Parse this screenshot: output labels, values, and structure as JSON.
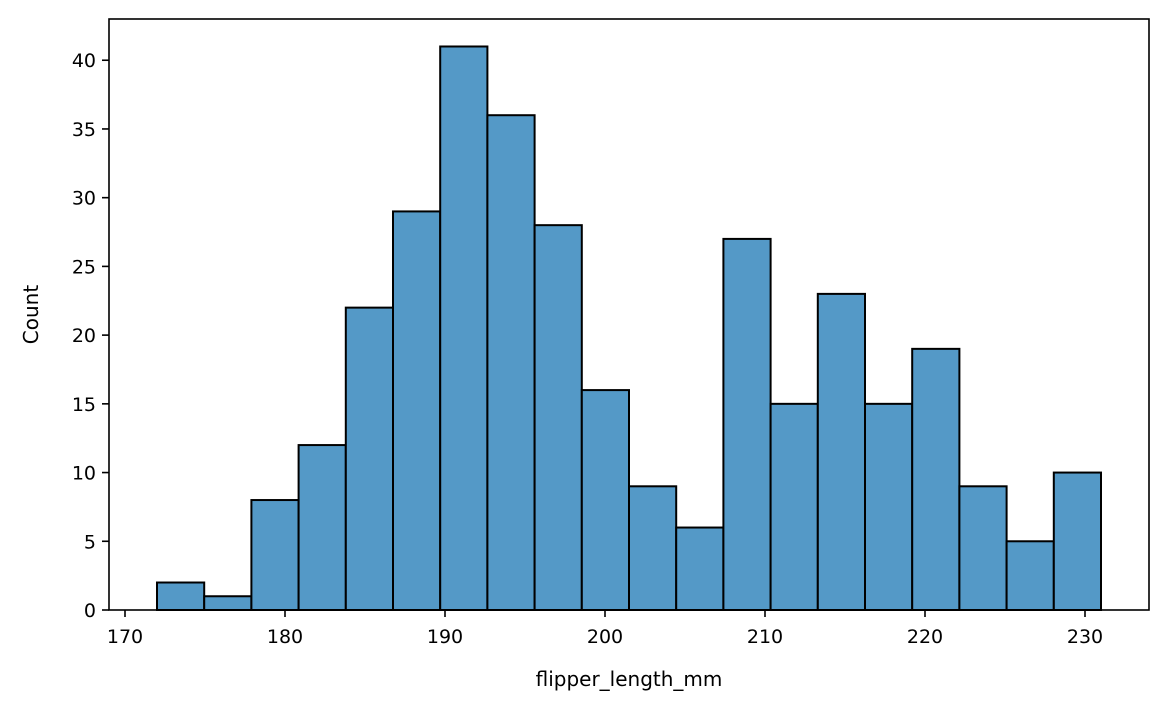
{
  "chart_data": {
    "type": "bar",
    "title": "",
    "xlabel": "flipper_length_mm",
    "ylabel": "Count",
    "bar_color": "#5499c7",
    "edge_color": "#000000",
    "bin_start": 172,
    "bin_width": 2.95,
    "counts": [
      2,
      1,
      8,
      12,
      22,
      29,
      41,
      36,
      28,
      16,
      9,
      6,
      27,
      15,
      23,
      15,
      19,
      9,
      5,
      10
    ],
    "xlim": [
      169,
      234
    ],
    "ylim": [
      0,
      43
    ],
    "xticks": [
      170,
      180,
      190,
      200,
      210,
      220,
      230
    ],
    "yticks": [
      0,
      5,
      10,
      15,
      20,
      25,
      30,
      35,
      40
    ],
    "grid": false,
    "legend": "none"
  }
}
